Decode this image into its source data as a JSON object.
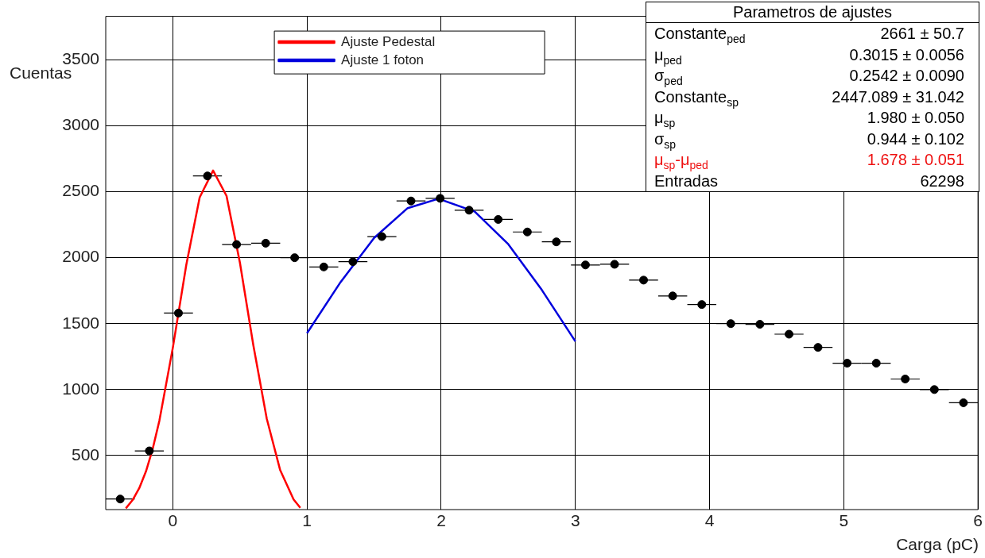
{
  "chart_data": {
    "type": "scatter",
    "xlabel": "Carga (pC)",
    "ylabel": "Cuentas",
    "xlim": [
      -0.5,
      6
    ],
    "xticks": [
      0,
      1,
      2,
      3,
      4,
      5,
      6
    ],
    "ylim": [
      90,
      3830
    ],
    "yticks": [
      500,
      1000,
      1500,
      2000,
      2500,
      3000,
      3500
    ],
    "grid": true,
    "legend": "top",
    "marker": "circle",
    "series": [
      {
        "type": "scatter",
        "color": "#000000",
        "x": [
          -0.392,
          -0.175,
          0.042,
          0.258,
          0.475,
          0.692,
          0.908,
          1.125,
          1.342,
          1.558,
          1.775,
          1.992,
          2.208,
          2.425,
          2.642,
          2.858,
          3.075,
          3.292,
          3.508,
          3.725,
          3.942,
          4.158,
          4.375,
          4.592,
          4.808,
          5.025,
          5.242,
          5.458,
          5.675,
          5.892
        ],
        "values": [
          170,
          535,
          1580,
          2620,
          2100,
          2110,
          2000,
          1930,
          1970,
          2160,
          2430,
          2450,
          2360,
          2290,
          2195,
          2120,
          1945,
          1950,
          1830,
          1710,
          1645,
          1500,
          1495,
          1420,
          1320,
          1200,
          1200,
          1080,
          1000,
          900
        ],
        "xerrors": [
          0.108,
          0.108,
          0.108,
          0.108,
          0.108,
          0.108,
          0.108,
          0.108,
          0.108,
          0.108,
          0.108,
          0.108,
          0.108,
          0.108,
          0.108,
          0.108,
          0.108,
          0.108,
          0.108,
          0.108,
          0.108,
          0.108,
          0.108,
          0.108,
          0.108,
          0.108,
          0.108,
          0.108,
          0.108,
          0.108
        ]
      },
      {
        "type": "line",
        "marker": "none",
        "name": "Ajuste Pedestal",
        "color": "#ff0000",
        "x": [
          -0.35,
          -0.3,
          -0.25,
          -0.2,
          -0.15,
          -0.1,
          0,
          0.1,
          0.2,
          0.3,
          0.4,
          0.5,
          0.6,
          0.7,
          0.8,
          0.9,
          0.95
        ],
        "values": [
          100,
          162,
          253,
          380,
          550,
          765,
          1317,
          1944,
          2457,
          2661,
          2469,
          1962,
          1336,
          779,
          389,
          167,
          103
        ]
      },
      {
        "type": "line",
        "marker": "none",
        "name": "Ajuste 1 foton",
        "color": "#0000dd",
        "x": [
          1,
          1.25,
          1.5,
          1.75,
          1.98,
          2.25,
          2.5,
          2.75,
          3
        ],
        "values": [
          1428,
          1815,
          2150,
          2376,
          2447,
          2349,
          2102,
          1755,
          1365
        ]
      }
    ],
    "annotations": [
      "Parametros de ajustes",
      "Constante$_{ped}$",
      "2661 ± 50.7",
      "μ$_{ped}$",
      "0.3015 ± 0.0056",
      "σ$_{ped}$",
      "0.2542 ± 0.0090",
      "Constante$_{sp}$",
      "2447.089 ± 31.042",
      "μ$_{sp}$",
      "1.980 ± 0.050",
      "σ$_{sp}$",
      "0.944 ± 0.102",
      "μ$_{sp}$-μ$_{ped}$",
      "1.678 ± 0.051",
      "Entradas",
      "62298"
    ]
  }
}
